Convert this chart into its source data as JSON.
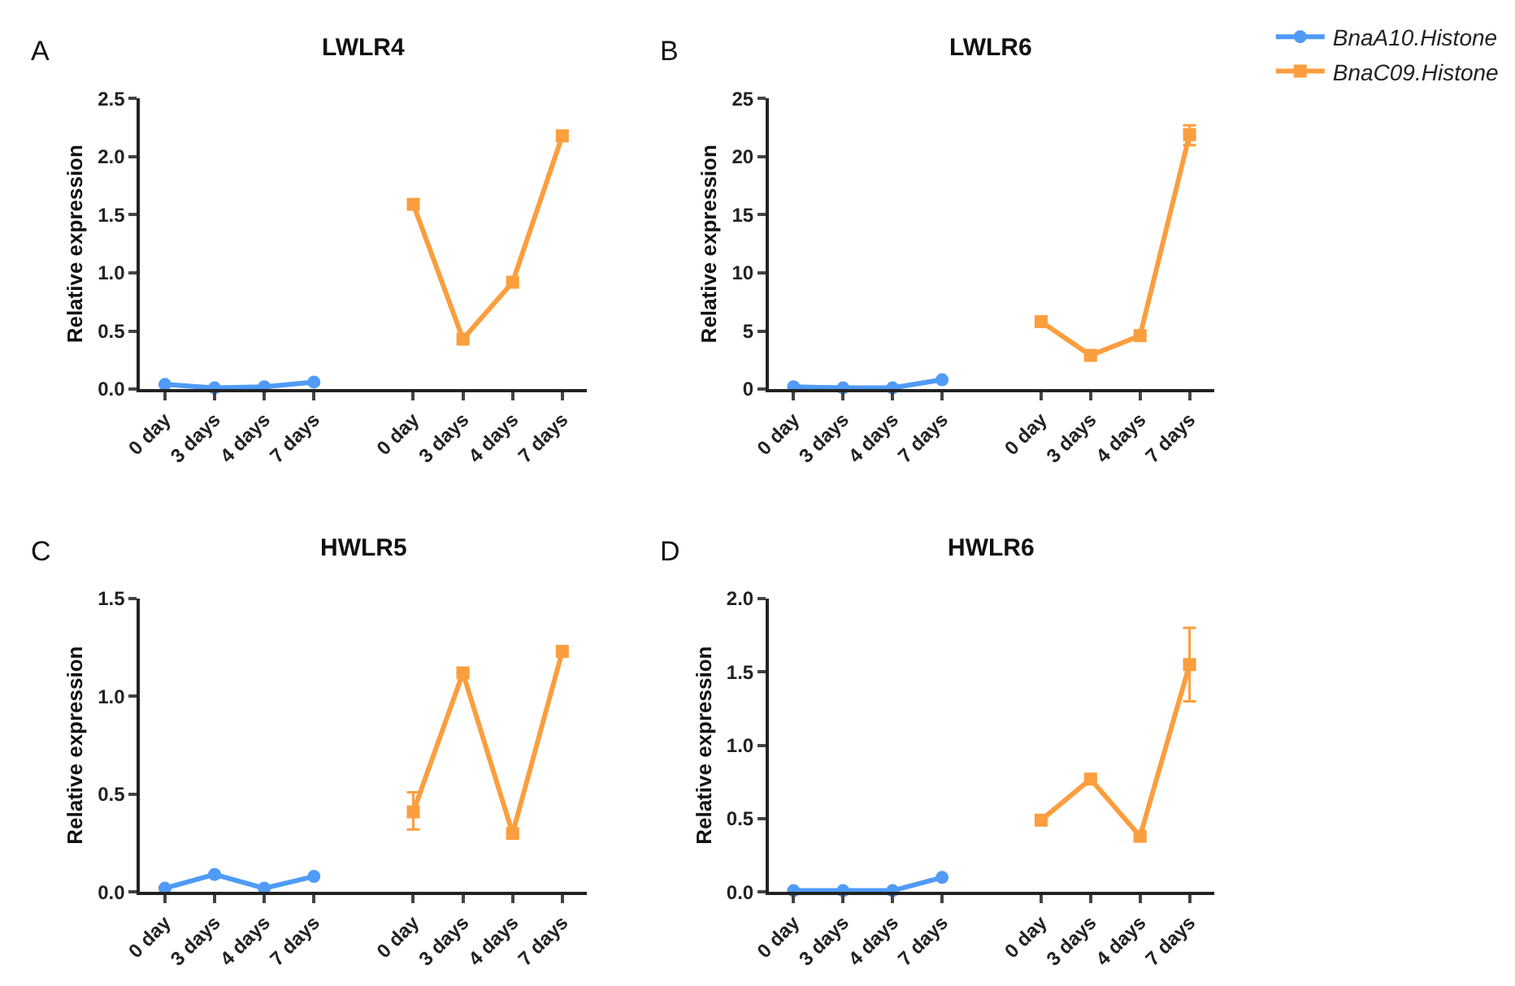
{
  "chart_data": [
    {
      "type": "line",
      "title": "LWLR4",
      "annotations": [
        "A"
      ],
      "ylabel": "Relative expression",
      "categories": [
        "0 day",
        "3 days",
        "4 days",
        "7 days",
        null,
        "0 day",
        "3 days",
        "4 days",
        "7 days"
      ],
      "ylim": [
        0,
        2.5
      ],
      "yticks": [
        {
          "value": 0,
          "label": "0.0"
        },
        0.5,
        {
          "value": 1,
          "label": "1.0"
        },
        1.5,
        {
          "value": 2,
          "label": "2.0"
        },
        2.5
      ],
      "legend": false,
      "series": [
        {
          "color": "#4f9bf7",
          "marker": "circle",
          "values": [
            0.04,
            0.01,
            0.02,
            0.06,
            null,
            null,
            null,
            null,
            null
          ]
        },
        {
          "color": "#fb9e3e",
          "marker": "square",
          "values": [
            null,
            null,
            null,
            null,
            null,
            1.59,
            0.43,
            0.92,
            2.18
          ]
        }
      ]
    },
    {
      "type": "line",
      "title": "LWLR6",
      "annotations": [
        "B"
      ],
      "ylabel": "Relative expression",
      "categories": [
        "0 day",
        "3 days",
        "4 days",
        "7 days",
        null,
        "0 day",
        "3 days",
        "4 days",
        "7 days"
      ],
      "ylim": [
        0,
        25
      ],
      "yticks": [
        0,
        5,
        10,
        15,
        20,
        25
      ],
      "legend": "top right",
      "series": [
        {
          "name": "BnaA10.Histone",
          "color": "#4f9bf7",
          "marker": "circle",
          "values": [
            0.2,
            0.1,
            0.1,
            0.8,
            null,
            null,
            null,
            null,
            null
          ]
        },
        {
          "name": "BnaC09.Histone",
          "color": "#fb9e3e",
          "marker": "square",
          "values": [
            null,
            null,
            null,
            null,
            null,
            5.8,
            2.9,
            4.6,
            21.9
          ],
          "errors": [
            null,
            null,
            null,
            null,
            null,
            null,
            null,
            null,
            [
              21.0,
              22.7
            ]
          ]
        }
      ]
    },
    {
      "type": "line",
      "title": "HWLR5",
      "annotations": [
        "C"
      ],
      "ylabel": "Relative expression",
      "categories": [
        "0 day",
        "3 days",
        "4 days",
        "7 days",
        null,
        "0 day",
        "3 days",
        "4 days",
        "7 days"
      ],
      "ylim": [
        0,
        1.5
      ],
      "yticks": [
        {
          "value": 0,
          "label": "0.0"
        },
        0.5,
        {
          "value": 1,
          "label": "1.0"
        },
        1.5
      ],
      "legend": false,
      "series": [
        {
          "color": "#4f9bf7",
          "marker": "circle",
          "values": [
            0.02,
            0.09,
            0.02,
            0.08,
            null,
            null,
            null,
            null,
            null
          ]
        },
        {
          "color": "#fb9e3e",
          "marker": "square",
          "values": [
            null,
            null,
            null,
            null,
            null,
            0.41,
            1.12,
            0.3,
            1.23
          ],
          "errors": [
            null,
            null,
            null,
            null,
            null,
            [
              0.32,
              0.51
            ],
            null,
            null,
            null
          ]
        }
      ]
    },
    {
      "type": "line",
      "title": "HWLR6",
      "annotations": [
        "D"
      ],
      "ylabel": "Relative expression",
      "categories": [
        "0 day",
        "3 days",
        "4 days",
        "7 days",
        null,
        "0 day",
        "3 days",
        "4 days",
        "7 days"
      ],
      "ylim": [
        0,
        2.0
      ],
      "yticks": [
        {
          "value": 0,
          "label": "0.0"
        },
        0.5,
        {
          "value": 1,
          "label": "1.0"
        },
        1.5,
        {
          "value": 2,
          "label": "2.0"
        }
      ],
      "legend": false,
      "series": [
        {
          "color": "#4f9bf7",
          "marker": "circle",
          "values": [
            0.01,
            0.01,
            0.01,
            0.1,
            null,
            null,
            null,
            null,
            null
          ]
        },
        {
          "color": "#fb9e3e",
          "marker": "square",
          "values": [
            null,
            null,
            null,
            null,
            null,
            0.49,
            0.77,
            0.38,
            1.55
          ],
          "errors": [
            null,
            null,
            null,
            null,
            null,
            null,
            null,
            null,
            [
              1.3,
              1.8
            ]
          ]
        }
      ]
    }
  ]
}
